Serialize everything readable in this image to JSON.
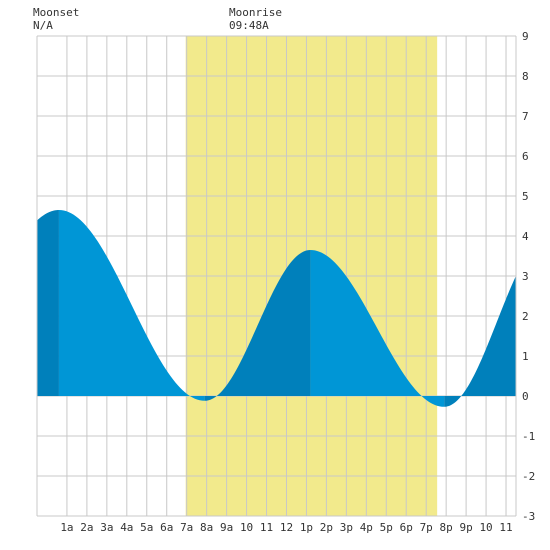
{
  "moonset": {
    "label": "Moonset",
    "value": "N/A"
  },
  "moonrise": {
    "label": "Moonrise",
    "value": "09:48A"
  },
  "chart_data": {
    "type": "area",
    "x_unit": "hour of day",
    "xlim": [
      -0.5,
      23.5
    ],
    "ylim": [
      -3,
      9
    ],
    "y_ticks": [
      -3,
      -2,
      -1,
      0,
      1,
      2,
      3,
      4,
      5,
      6,
      7,
      8,
      9
    ],
    "x_ticks": [
      {
        "hour": 1,
        "label": "1a"
      },
      {
        "hour": 2,
        "label": "2a"
      },
      {
        "hour": 3,
        "label": "3a"
      },
      {
        "hour": 4,
        "label": "4a"
      },
      {
        "hour": 5,
        "label": "5a"
      },
      {
        "hour": 6,
        "label": "6a"
      },
      {
        "hour": 7,
        "label": "7a"
      },
      {
        "hour": 8,
        "label": "8a"
      },
      {
        "hour": 9,
        "label": "9a"
      },
      {
        "hour": 10,
        "label": "10"
      },
      {
        "hour": 11,
        "label": "11"
      },
      {
        "hour": 12,
        "label": "12"
      },
      {
        "hour": 13,
        "label": "1p"
      },
      {
        "hour": 14,
        "label": "2p"
      },
      {
        "hour": 15,
        "label": "3p"
      },
      {
        "hour": 16,
        "label": "4p"
      },
      {
        "hour": 17,
        "label": "5p"
      },
      {
        "hour": 18,
        "label": "6p"
      },
      {
        "hour": 19,
        "label": "7p"
      },
      {
        "hour": 20,
        "label": "8p"
      },
      {
        "hour": 21,
        "label": "9p"
      },
      {
        "hour": 22,
        "label": "10"
      },
      {
        "hour": 23,
        "label": "11"
      }
    ],
    "tide_extremes": [
      {
        "hour": 0.6,
        "height": 4.65,
        "kind": "high"
      },
      {
        "hour": 7.9,
        "height": -0.12,
        "kind": "low"
      },
      {
        "hour": 13.2,
        "height": 3.65,
        "kind": "high"
      },
      {
        "hour": 19.9,
        "height": -0.27,
        "kind": "low"
      }
    ],
    "last_value": {
      "hour": 23.5,
      "height": 3.75
    },
    "daylight": {
      "start_hour": 6.95,
      "end_hour": 19.55
    },
    "colors": {
      "daylight": "#f2ea8c",
      "rising": "#0080bb",
      "falling": "#0096d6",
      "grid": "#c8c8c8",
      "background": "#ffffff",
      "text": "#333333"
    },
    "grid": true
  }
}
